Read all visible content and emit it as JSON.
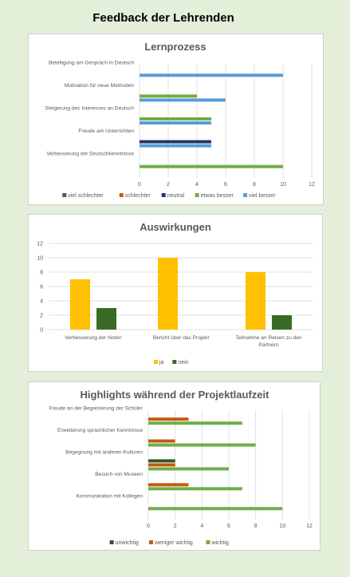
{
  "page": {
    "title": "Feedback der Lehrenden"
  },
  "colors": {
    "viel_schlechter": "#595959",
    "schlechter": "#c55a11",
    "neutral": "#203864",
    "etwas_besser": "#70ad47",
    "viel_besser": "#5b9bd5",
    "ja": "#ffc000",
    "nein": "#3a6b26",
    "unwichtig": "#375623",
    "weniger_wichtig": "#c55a11",
    "wichtig": "#70ad47"
  },
  "chart_data": [
    {
      "type": "bar",
      "orientation": "horizontal",
      "title": "Lernprozess",
      "categories": [
        "Beteiligung am Gespräch in Deutsch",
        "Motivation für neue Methoden",
        "Steigerung des Interesses an Deutsch",
        "Freude am Unterrichten",
        "Verbesserung der Deutschkenntnisse"
      ],
      "series": [
        {
          "name": "viel schlechter",
          "color": "#595959",
          "values": [
            0,
            0,
            0,
            0,
            0
          ]
        },
        {
          "name": "schlechter",
          "color": "#c55a11",
          "values": [
            0,
            0,
            0,
            0,
            0
          ]
        },
        {
          "name": "neutral",
          "color": "#203864",
          "values": [
            0,
            0,
            0,
            5,
            0
          ]
        },
        {
          "name": "etwas besser",
          "color": "#70ad47",
          "values": [
            0,
            4,
            5,
            0,
            10
          ]
        },
        {
          "name": "viel besser",
          "color": "#5b9bd5",
          "values": [
            10,
            6,
            5,
            5,
            0
          ]
        }
      ],
      "xlim": [
        0,
        12
      ],
      "xticks": [
        "0",
        "2",
        "4",
        "6",
        "8",
        "10",
        "12"
      ],
      "grid": true,
      "legend": "bottom"
    },
    {
      "type": "bar",
      "orientation": "vertical",
      "title": "Auswirkungen",
      "categories": [
        "Verbesserung der Noten",
        "Bericht über das Projekt",
        "Teilnahme an Reisen zu den Partnern"
      ],
      "category_lines": [
        [
          "Verbesserung der Noten"
        ],
        [
          "Bericht über das Projekt"
        ],
        [
          "Teilnahme an Reisen zu den",
          "Partnern"
        ]
      ],
      "series": [
        {
          "name": "ja",
          "color": "#ffc000",
          "values": [
            7,
            10,
            8
          ]
        },
        {
          "name": "nein",
          "color": "#3a6b26",
          "values": [
            3,
            0,
            2
          ]
        }
      ],
      "ylim": [
        0,
        12
      ],
      "yticks": [
        "0",
        "2",
        "4",
        "6",
        "8",
        "10",
        "12"
      ],
      "grid": true,
      "legend": "bottom"
    },
    {
      "type": "bar",
      "orientation": "horizontal",
      "title": "Highlights während der Projektlaufzeit",
      "categories": [
        "Freude an der Begeisterung der Schüler",
        "Erweiterung sprachlicher Kenntnisse",
        "Begegnung mit anderen Kulturen",
        "Besuch von Museen",
        "Kommunikation mit Kollegen"
      ],
      "series": [
        {
          "name": "unwichtig",
          "color": "#375623",
          "values": [
            0,
            0,
            2,
            0,
            0
          ]
        },
        {
          "name": "weniger wichtig",
          "color": "#c55a11",
          "values": [
            3,
            2,
            2,
            3,
            0
          ]
        },
        {
          "name": "wichtig",
          "color": "#70ad47",
          "values": [
            7,
            8,
            6,
            7,
            10
          ]
        }
      ],
      "xlim": [
        0,
        12
      ],
      "xticks": [
        "0",
        "2",
        "4",
        "6",
        "8",
        "10",
        "12"
      ],
      "grid": true,
      "legend": "bottom"
    }
  ]
}
